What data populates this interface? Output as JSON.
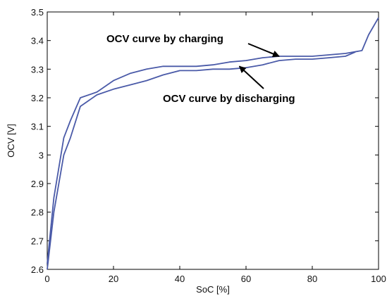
{
  "chart_data": {
    "type": "line",
    "title": "",
    "xlabel": "SoC [%]",
    "ylabel": "OCV [V]",
    "xlim": [
      0,
      100
    ],
    "ylim": [
      2.6,
      3.5
    ],
    "grid": false,
    "x_ticks": [
      "0",
      "20",
      "40",
      "60",
      "80",
      "100"
    ],
    "y_ticks": [
      "2.6",
      "2.7",
      "2.8",
      "2.9",
      "3",
      "3.1",
      "3.2",
      "3.3",
      "3.4",
      "3.5"
    ],
    "line_color": "#4a5aa8",
    "series": [
      {
        "x": [
          0,
          2,
          5,
          7,
          10,
          15,
          20,
          25,
          30,
          35,
          40,
          45,
          50,
          55,
          60,
          65,
          70,
          75,
          80,
          85,
          90,
          95,
          97,
          100
        ],
        "y": [
          2.62,
          2.85,
          3.06,
          3.12,
          3.2,
          3.22,
          3.26,
          3.285,
          3.3,
          3.31,
          3.31,
          3.31,
          3.315,
          3.325,
          3.33,
          3.34,
          3.345,
          3.345,
          3.345,
          3.35,
          3.355,
          3.365,
          3.42,
          3.48
        ]
      },
      {
        "x": [
          0,
          2,
          5,
          7,
          10,
          15,
          20,
          25,
          30,
          35,
          40,
          45,
          50,
          55,
          60,
          65,
          70,
          75,
          80,
          85,
          90,
          93
        ],
        "y": [
          2.6,
          2.8,
          3.0,
          3.06,
          3.17,
          3.21,
          3.23,
          3.245,
          3.26,
          3.28,
          3.295,
          3.295,
          3.3,
          3.3,
          3.305,
          3.315,
          3.33,
          3.335,
          3.335,
          3.34,
          3.345,
          3.36
        ]
      }
    ],
    "annotations": [
      {
        "text": "OCV curve by charging",
        "arrow_to": [
          70,
          3.345
        ]
      },
      {
        "text": "OCV curve by discharging",
        "arrow_to": [
          58,
          3.31
        ]
      }
    ]
  }
}
